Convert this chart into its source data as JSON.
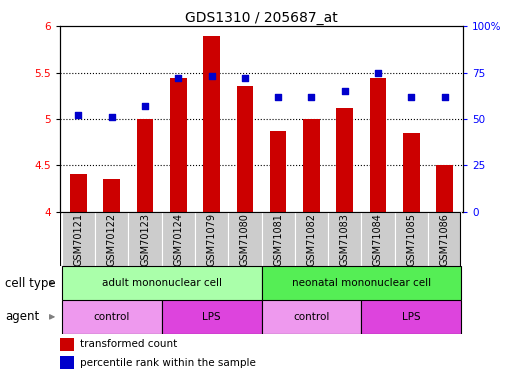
{
  "title": "GDS1310 / 205687_at",
  "samples": [
    "GSM70121",
    "GSM70122",
    "GSM70123",
    "GSM70124",
    "GSM71079",
    "GSM71080",
    "GSM71081",
    "GSM71082",
    "GSM71083",
    "GSM71084",
    "GSM71085",
    "GSM71086"
  ],
  "transformed_count": [
    4.41,
    4.35,
    5.0,
    5.44,
    5.9,
    5.36,
    4.87,
    5.0,
    5.12,
    5.44,
    4.85,
    4.5
  ],
  "percentile_rank": [
    52,
    51,
    57,
    72,
    73,
    72,
    62,
    62,
    65,
    75,
    62,
    62
  ],
  "ylim_left": [
    4.0,
    6.0
  ],
  "ylim_right": [
    0,
    100
  ],
  "yticks_left": [
    4.0,
    4.5,
    5.0,
    5.5,
    6.0
  ],
  "yticks_right": [
    0,
    25,
    50,
    75,
    100
  ],
  "bar_color": "#cc0000",
  "dot_color": "#0000cc",
  "bar_bottom": 4.0,
  "cell_type_groups": [
    {
      "label": "adult mononuclear cell",
      "start": 0,
      "end": 6,
      "color": "#aaffaa"
    },
    {
      "label": "neonatal mononuclear cell",
      "start": 6,
      "end": 12,
      "color": "#55ee55"
    }
  ],
  "agent_groups": [
    {
      "label": "control",
      "start": 0,
      "end": 3,
      "color": "#ee99ee"
    },
    {
      "label": "LPS",
      "start": 3,
      "end": 6,
      "color": "#dd44dd"
    },
    {
      "label": "control",
      "start": 6,
      "end": 9,
      "color": "#ee99ee"
    },
    {
      "label": "LPS",
      "start": 9,
      "end": 12,
      "color": "#dd44dd"
    }
  ],
  "legend_red_label": "transformed count",
  "legend_blue_label": "percentile rank within the sample",
  "cell_type_label": "cell type",
  "agent_label": "agent",
  "title_fontsize": 10,
  "tick_fontsize": 7.5,
  "label_fontsize": 8.5,
  "sample_fontsize": 7,
  "grid_linestyle": ":",
  "grid_linewidth": 0.8
}
